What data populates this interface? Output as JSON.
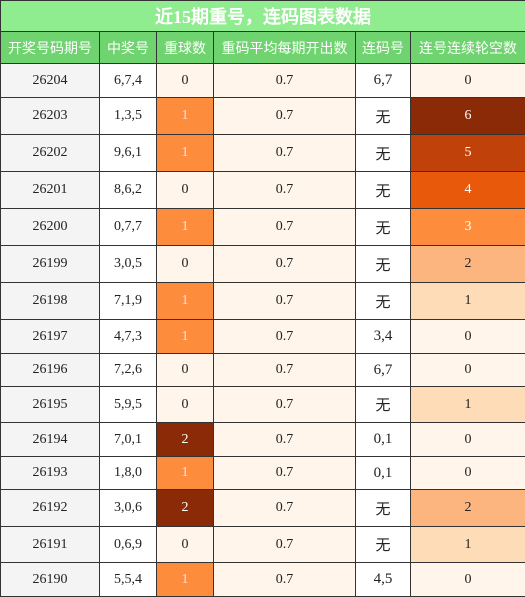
{
  "title": "近15期重号，连码图表数据",
  "table": {
    "headers": [
      "开奖号码期号",
      "中奖号",
      "重球数",
      "重码平均每期开出数",
      "连码号",
      "连号连续轮空数"
    ],
    "rows": [
      [
        "26204",
        "6,7,4",
        "0",
        "0.7",
        "6,7",
        "0"
      ],
      [
        "26203",
        "1,3,5",
        "1",
        "0.7",
        "无",
        "6"
      ],
      [
        "26202",
        "9,6,1",
        "1",
        "0.7",
        "无",
        "5"
      ],
      [
        "26201",
        "8,6,2",
        "0",
        "0.7",
        "无",
        "4"
      ],
      [
        "26200",
        "0,7,7",
        "1",
        "0.7",
        "无",
        "3"
      ],
      [
        "26199",
        "3,0,5",
        "0",
        "0.7",
        "无",
        "2"
      ],
      [
        "26198",
        "7,1,9",
        "1",
        "0.7",
        "无",
        "1"
      ],
      [
        "26197",
        "4,7,3",
        "1",
        "0.7",
        "3,4",
        "0"
      ],
      [
        "26196",
        "7,2,6",
        "0",
        "0.7",
        "6,7",
        "0"
      ],
      [
        "26195",
        "5,9,5",
        "0",
        "0.7",
        "无",
        "1"
      ],
      [
        "26194",
        "7,0,1",
        "2",
        "0.7",
        "0,1",
        "0"
      ],
      [
        "26193",
        "1,8,0",
        "1",
        "0.7",
        "0,1",
        "0"
      ],
      [
        "26192",
        "3,0,6",
        "2",
        "0.7",
        "无",
        "2"
      ],
      [
        "26191",
        "0,6,9",
        "0",
        "0.7",
        "无",
        "1"
      ],
      [
        "26190",
        "5,5,4",
        "1",
        "0.7",
        "4,5",
        "0"
      ]
    ]
  }
}
